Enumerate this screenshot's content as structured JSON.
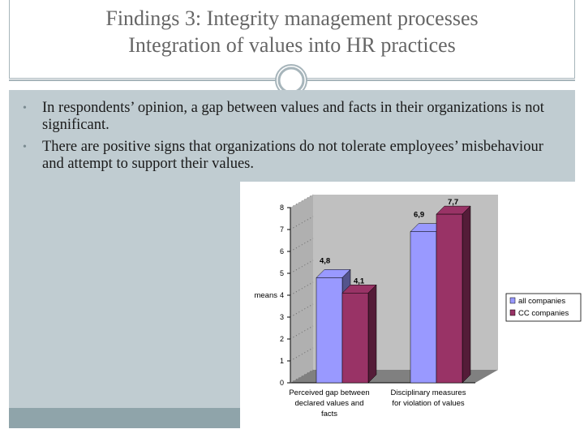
{
  "slide": {
    "title_line1": "Findings 3: Integrity management processes",
    "title_line2": "Integration of values into HR practices",
    "bullets": [
      "In respondents’ opinion, a gap between values and facts in their organizations is not significant.",
      "There are positive signs that organizations do not tolerate employees’ misbehaviour and attempt to support their values."
    ],
    "colors": {
      "frame": "#a7b5bb",
      "panel": "#c0ccd1",
      "strip": "#8fa4aa",
      "title": "#666666"
    },
    "icons": {
      "ornament": "circle-ornament-icon",
      "bullet": "bullet-dot-icon"
    }
  },
  "chart_data": {
    "type": "bar",
    "ylabel": "means",
    "ylim": [
      0,
      8
    ],
    "yticks": [
      "0",
      "1",
      "2",
      "3",
      "4",
      "5",
      "6",
      "7",
      "8"
    ],
    "categories": [
      [
        "Perceived gap between",
        "declared values and",
        "facts"
      ],
      [
        "Disciplinary measures",
        "for violation of values"
      ]
    ],
    "series": [
      {
        "name": "all companies",
        "values": [
          4.8,
          6.9
        ],
        "labels": [
          "4,8",
          "6,9"
        ],
        "color": "#9999ff"
      },
      {
        "name": "CC companies",
        "values": [
          4.1,
          7.7
        ],
        "labels": [
          "4,1",
          "7,7"
        ],
        "color": "#993366"
      }
    ],
    "legend_position": "right",
    "grid": false,
    "three_d": true
  }
}
